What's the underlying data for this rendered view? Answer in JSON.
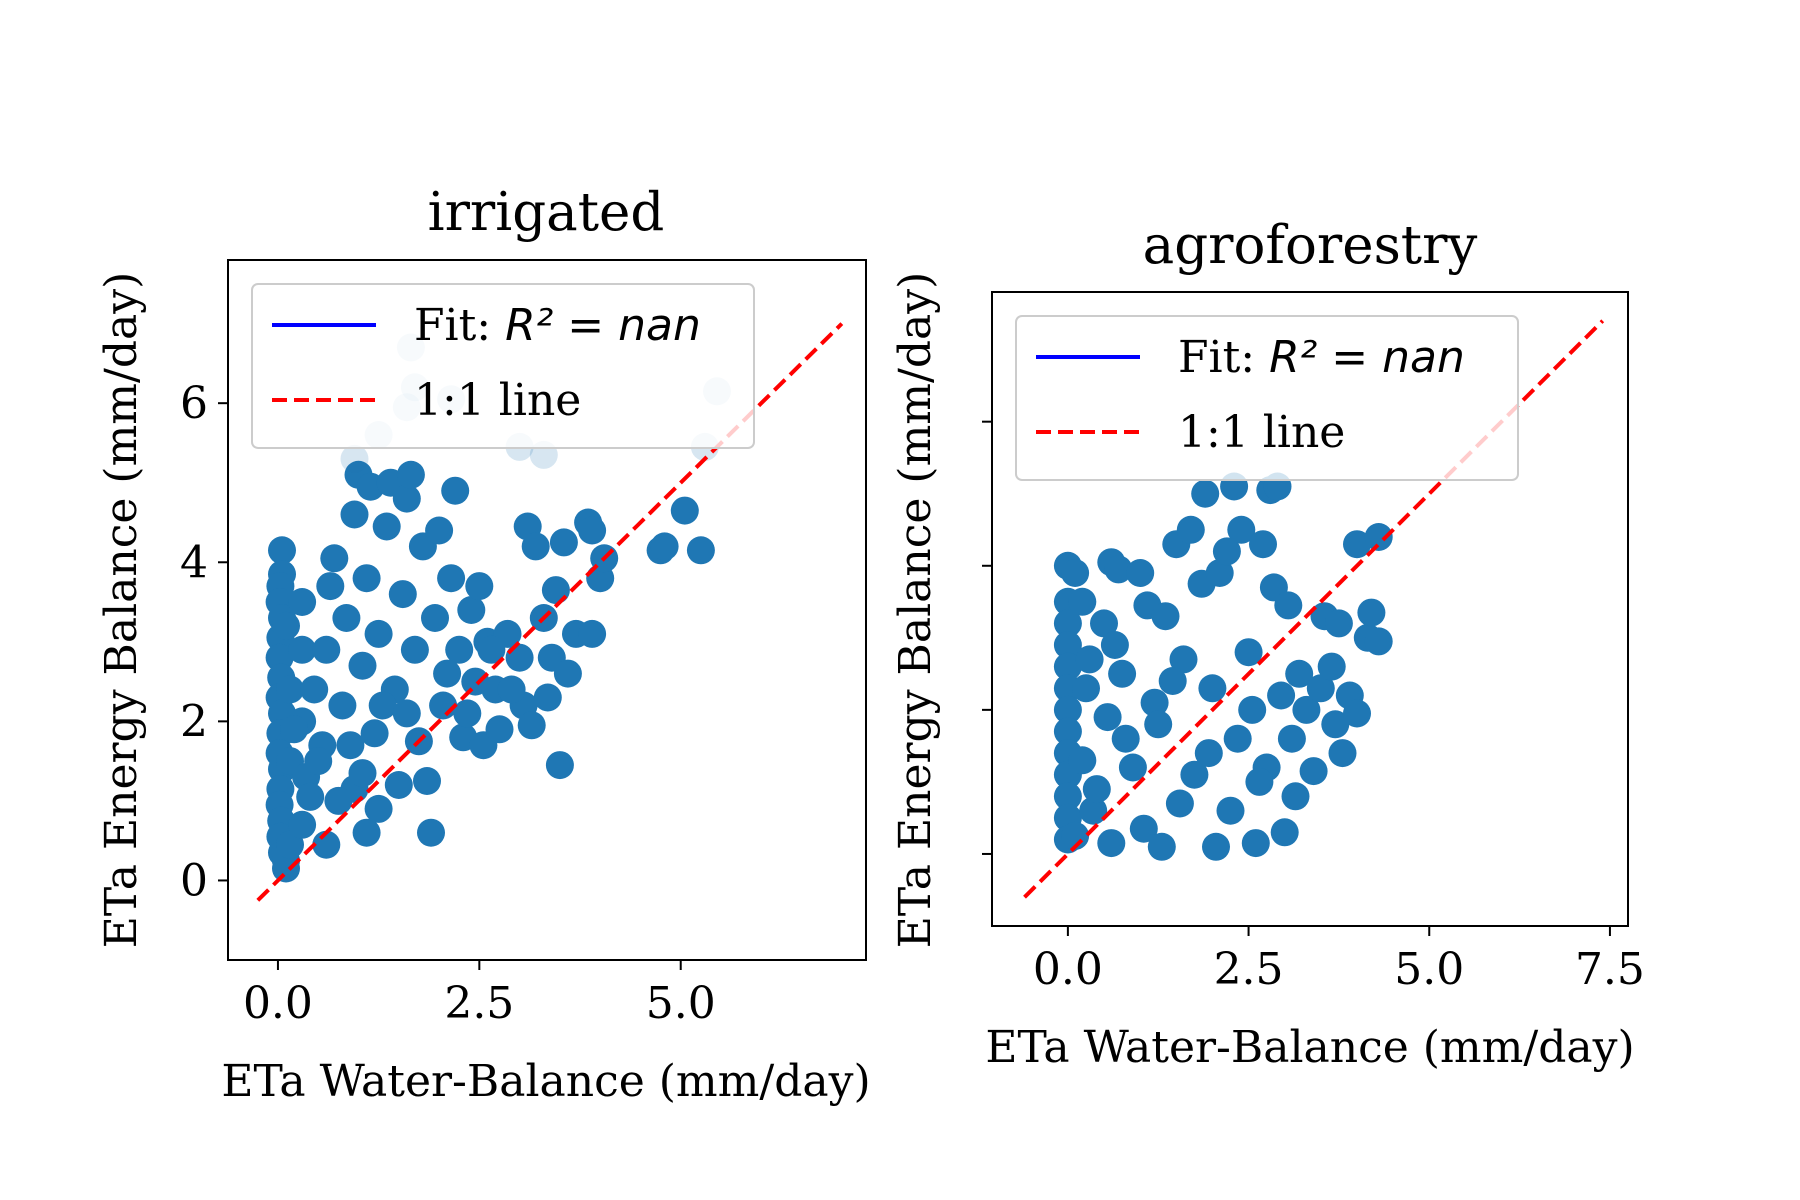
{
  "chart_data": [
    {
      "type": "scatter",
      "title": "irrigated",
      "xlabel": "ETa Water-Balance (mm/day)",
      "ylabel": "ETa Energy Balance (mm/day)",
      "xlim": [
        -0.62,
        7.3
      ],
      "ylim": [
        -1.0,
        7.8
      ],
      "xticks": [
        0.0,
        2.5,
        5.0
      ],
      "xtick_labels": [
        "0.0",
        "2.5",
        "5.0"
      ],
      "yticks": [
        0,
        2,
        4,
        6
      ],
      "ytick_labels": [
        "0",
        "2",
        "4",
        "6"
      ],
      "grid": false,
      "legend": {
        "position": "top-left",
        "entries": [
          {
            "label": "Fit: ",
            "math": "R² = nan",
            "style": "solid",
            "color": "#0000ff"
          },
          {
            "label": "1:1 line",
            "style": "dashed",
            "color": "#ff0000"
          }
        ]
      },
      "one_to_one_line": {
        "from": -0.25,
        "to": 7.0
      },
      "series": [
        {
          "color": "#1f77b4",
          "points": [
            [
              0.05,
              4.15
            ],
            [
              0.05,
              3.85
            ],
            [
              0.03,
              3.7
            ],
            [
              0.02,
              3.5
            ],
            [
              0.05,
              3.3
            ],
            [
              0.03,
              3.05
            ],
            [
              0.02,
              2.8
            ],
            [
              0.04,
              2.55
            ],
            [
              0.02,
              2.3
            ],
            [
              0.05,
              2.1
            ],
            [
              0.03,
              1.85
            ],
            [
              0.02,
              1.6
            ],
            [
              0.05,
              1.4
            ],
            [
              0.03,
              1.15
            ],
            [
              0.02,
              0.95
            ],
            [
              0.04,
              0.75
            ],
            [
              0.03,
              0.55
            ],
            [
              0.05,
              0.35
            ],
            [
              0.1,
              0.15
            ],
            [
              0.1,
              0.25
            ],
            [
              0.15,
              0.45
            ],
            [
              0.15,
              1.5
            ],
            [
              0.15,
              2.4
            ],
            [
              0.1,
              3.2
            ],
            [
              0.3,
              0.7
            ],
            [
              0.35,
              1.3
            ],
            [
              0.3,
              2.0
            ],
            [
              0.3,
              2.9
            ],
            [
              0.3,
              3.5
            ],
            [
              0.45,
              2.4
            ],
            [
              0.55,
              1.7
            ],
            [
              0.6,
              0.45
            ],
            [
              0.6,
              2.9
            ],
            [
              0.65,
              3.7
            ],
            [
              0.7,
              4.05
            ],
            [
              0.8,
              2.2
            ],
            [
              0.85,
              3.3
            ],
            [
              0.95,
              1.15
            ],
            [
              0.95,
              4.6
            ],
            [
              1.0,
              5.1
            ],
            [
              1.05,
              2.7
            ],
            [
              1.1,
              0.6
            ],
            [
              1.1,
              3.8
            ],
            [
              1.15,
              4.95
            ],
            [
              1.2,
              1.85
            ],
            [
              1.25,
              3.1
            ],
            [
              1.25,
              0.9
            ],
            [
              1.35,
              4.45
            ],
            [
              1.4,
              5.0
            ],
            [
              1.45,
              2.4
            ],
            [
              1.5,
              1.2
            ],
            [
              1.55,
              3.6
            ],
            [
              1.6,
              4.8
            ],
            [
              1.65,
              5.1
            ],
            [
              1.7,
              2.9
            ],
            [
              1.75,
              1.75
            ],
            [
              1.8,
              4.2
            ],
            [
              1.85,
              1.25
            ],
            [
              1.9,
              0.6
            ],
            [
              1.95,
              3.3
            ],
            [
              2.0,
              4.4
            ],
            [
              2.05,
              2.2
            ],
            [
              2.15,
              3.8
            ],
            [
              2.2,
              4.9
            ],
            [
              2.25,
              2.9
            ],
            [
              2.3,
              1.8
            ],
            [
              2.4,
              3.4
            ],
            [
              2.45,
              2.5
            ],
            [
              2.5,
              3.7
            ],
            [
              2.55,
              1.7
            ],
            [
              2.6,
              3.0
            ],
            [
              2.7,
              2.4
            ],
            [
              2.75,
              1.9
            ],
            [
              2.85,
              3.1
            ],
            [
              3.0,
              2.8
            ],
            [
              3.05,
              2.2
            ],
            [
              3.1,
              4.45
            ],
            [
              3.15,
              1.95
            ],
            [
              3.2,
              4.2
            ],
            [
              3.3,
              3.3
            ],
            [
              3.35,
              2.3
            ],
            [
              3.4,
              2.8
            ],
            [
              3.45,
              3.65
            ],
            [
              3.5,
              1.45
            ],
            [
              3.55,
              4.25
            ],
            [
              3.6,
              2.6
            ],
            [
              3.7,
              3.1
            ],
            [
              3.85,
              4.5
            ],
            [
              3.9,
              4.4
            ],
            [
              3.9,
              3.1
            ],
            [
              4.0,
              3.8
            ],
            [
              4.05,
              4.05
            ],
            [
              4.75,
              4.15
            ],
            [
              4.8,
              4.2
            ],
            [
              5.05,
              4.65
            ],
            [
              5.25,
              4.15
            ],
            [
              0.4,
              1.05
            ],
            [
              0.5,
              1.5
            ],
            [
              0.75,
              1.0
            ],
            [
              0.9,
              1.7
            ],
            [
              1.3,
              2.2
            ],
            [
              1.6,
              2.1
            ],
            [
              2.1,
              2.6
            ],
            [
              2.35,
              2.1
            ],
            [
              2.65,
              2.9
            ],
            [
              2.9,
              2.4
            ],
            [
              1.05,
              1.35
            ],
            [
              0.2,
              1.9
            ]
          ]
        },
        {
          "color": "#1f77b4",
          "opacity": 0.18,
          "points": [
            [
              1.65,
              6.7
            ],
            [
              1.7,
              6.2
            ],
            [
              1.6,
              5.95
            ],
            [
              2.15,
              6.05
            ],
            [
              1.25,
              5.6
            ],
            [
              0.95,
              5.3
            ],
            [
              3.0,
              5.45
            ],
            [
              3.3,
              5.35
            ],
            [
              5.3,
              5.45
            ],
            [
              5.45,
              6.15
            ]
          ]
        }
      ]
    },
    {
      "type": "scatter",
      "title": "agroforestry",
      "xlabel": "ETa Water-Balance (mm/day)",
      "ylabel": "ETa Energy Balance (mm/day)",
      "xlim": [
        -1.05,
        7.75
      ],
      "ylim": [
        -1.0,
        7.8
      ],
      "xticks": [
        0.0,
        2.5,
        5.0,
        7.5
      ],
      "xtick_labels": [
        "0.0",
        "2.5",
        "5.0",
        "7.5"
      ],
      "yticks": [
        0,
        2,
        4,
        6
      ],
      "ytick_labels": [
        "",
        "",
        "",
        ""
      ],
      "grid": false,
      "legend": {
        "position": "top-left",
        "entries": [
          {
            "label": "Fit: ",
            "math": "R² = nan",
            "style": "solid",
            "color": "#0000ff"
          },
          {
            "label": "1:1 line",
            "style": "dashed",
            "color": "#ff0000"
          }
        ]
      },
      "one_to_one_line": {
        "from": -0.6,
        "to": 7.4
      },
      "series": [
        {
          "color": "#1f77b4",
          "points": [
            [
              0.0,
              4.0
            ],
            [
              0.0,
              3.5
            ],
            [
              0.0,
              3.2
            ],
            [
              0.0,
              2.9
            ],
            [
              0.0,
              2.6
            ],
            [
              0.0,
              2.3
            ],
            [
              0.0,
              2.0
            ],
            [
              0.0,
              1.7
            ],
            [
              0.0,
              1.4
            ],
            [
              0.0,
              1.1
            ],
            [
              0.0,
              0.8
            ],
            [
              0.0,
              0.5
            ],
            [
              0.0,
              0.2
            ],
            [
              0.1,
              0.25
            ],
            [
              0.1,
              3.9
            ],
            [
              0.2,
              3.5
            ],
            [
              0.2,
              1.3
            ],
            [
              0.3,
              2.7
            ],
            [
              0.35,
              0.6
            ],
            [
              0.5,
              3.2
            ],
            [
              0.55,
              1.9
            ],
            [
              0.6,
              4.05
            ],
            [
              0.6,
              0.15
            ],
            [
              0.7,
              3.95
            ],
            [
              0.75,
              2.5
            ],
            [
              0.9,
              1.2
            ],
            [
              1.0,
              3.9
            ],
            [
              1.05,
              0.35
            ],
            [
              1.1,
              3.45
            ],
            [
              1.2,
              2.1
            ],
            [
              1.3,
              0.1
            ],
            [
              1.35,
              3.3
            ],
            [
              1.5,
              4.3
            ],
            [
              1.6,
              2.7
            ],
            [
              1.7,
              4.5
            ],
            [
              1.75,
              1.1
            ],
            [
              1.85,
              3.75
            ],
            [
              1.9,
              5.0
            ],
            [
              2.0,
              2.3
            ],
            [
              2.05,
              0.1
            ],
            [
              2.1,
              3.9
            ],
            [
              2.2,
              4.2
            ],
            [
              2.3,
              5.1
            ],
            [
              2.35,
              1.6
            ],
            [
              2.4,
              4.5
            ],
            [
              2.5,
              2.8
            ],
            [
              2.6,
              0.15
            ],
            [
              2.7,
              4.3
            ],
            [
              2.75,
              1.2
            ],
            [
              2.8,
              5.05
            ],
            [
              2.85,
              3.7
            ],
            [
              2.9,
              5.1
            ],
            [
              2.95,
              2.2
            ],
            [
              3.0,
              0.3
            ],
            [
              3.05,
              3.45
            ],
            [
              3.1,
              1.6
            ],
            [
              3.2,
              2.5
            ],
            [
              3.3,
              2.0
            ],
            [
              3.4,
              1.15
            ],
            [
              3.5,
              2.3
            ],
            [
              3.55,
              3.3
            ],
            [
              3.65,
              2.6
            ],
            [
              3.7,
              1.8
            ],
            [
              3.75,
              3.2
            ],
            [
              3.8,
              1.4
            ],
            [
              3.9,
              2.2
            ],
            [
              4.0,
              1.95
            ],
            [
              4.0,
              4.3
            ],
            [
              4.15,
              3.0
            ],
            [
              4.2,
              3.35
            ],
            [
              4.3,
              4.4
            ],
            [
              4.3,
              2.95
            ],
            [
              0.4,
              0.9
            ],
            [
              0.8,
              1.6
            ],
            [
              1.25,
              1.8
            ],
            [
              1.55,
              0.7
            ],
            [
              1.95,
              1.4
            ],
            [
              2.25,
              0.6
            ],
            [
              2.55,
              2.0
            ],
            [
              2.65,
              1.0
            ],
            [
              3.15,
              0.8
            ],
            [
              0.25,
              2.3
            ],
            [
              0.65,
              2.9
            ],
            [
              1.45,
              2.4
            ]
          ]
        }
      ]
    }
  ]
}
